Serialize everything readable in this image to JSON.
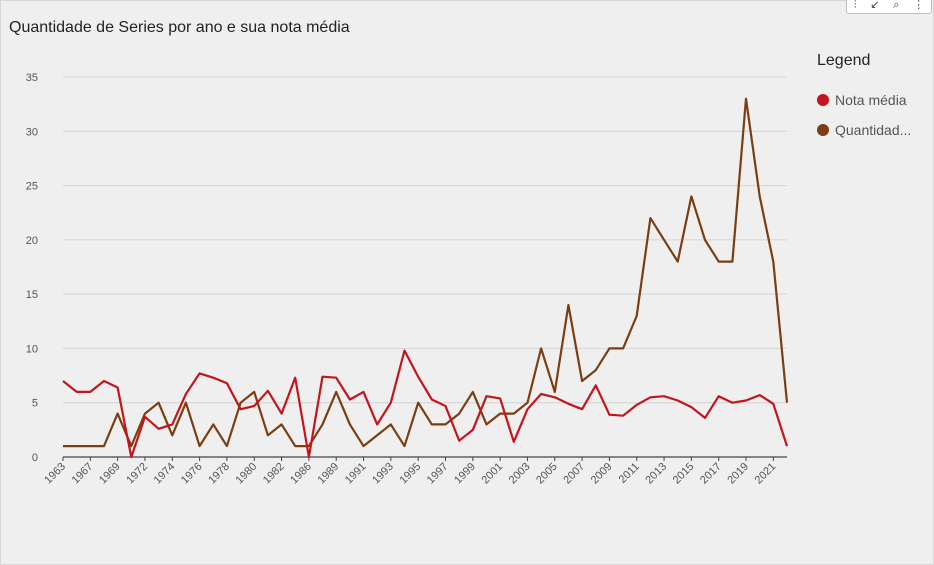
{
  "toolbar": {
    "icons": [
      "filter-icon",
      "collapse-icon",
      "pin-icon",
      "more-options-icon"
    ],
    "glyphs": [
      "⫶",
      "↙",
      "⌕",
      "⋮"
    ]
  },
  "chart_data": {
    "type": "line",
    "title": "Quantidade de Series por ano e sua nota média",
    "legend_title": "Legend",
    "legend_position": "right",
    "grid": true,
    "xlabel": "",
    "ylabel": "",
    "ylim": [
      0,
      35
    ],
    "yticks": [
      "0",
      "5",
      "10",
      "15",
      "20",
      "25",
      "30",
      "35"
    ],
    "x": [
      1963,
      1966,
      1967,
      1968,
      1969,
      1970,
      1972,
      1973,
      1974,
      1975,
      1976,
      1977,
      1978,
      1979,
      1980,
      1981,
      1982,
      1983,
      1986,
      1988,
      1989,
      1990,
      1991,
      1992,
      1993,
      1994,
      1995,
      1996,
      1997,
      1998,
      1999,
      2000,
      2001,
      2002,
      2003,
      2004,
      2005,
      2006,
      2007,
      2008,
      2009,
      2010,
      2011,
      2012,
      2013,
      2014,
      2015,
      2016,
      2017,
      2018,
      2019,
      2020,
      2021,
      2022
    ],
    "xtick_labels": [
      "1963",
      "1967",
      "1969",
      "1972",
      "1974",
      "1976",
      "1978",
      "1980",
      "1982",
      "1986",
      "1989",
      "1991",
      "1993",
      "1995",
      "1997",
      "1999",
      "2001",
      "2003",
      "2005",
      "2007",
      "2009",
      "2011",
      "2013",
      "2015",
      "2017",
      "2019",
      "2021"
    ],
    "xtick_label_indices": [
      0,
      2,
      4,
      6,
      8,
      10,
      12,
      14,
      16,
      18,
      20,
      22,
      24,
      26,
      28,
      30,
      32,
      34,
      36,
      38,
      40,
      42,
      44,
      46,
      48,
      50,
      52
    ],
    "series": [
      {
        "name": "Nota média",
        "color": "#c4151c",
        "values": [
          7,
          6,
          6,
          7,
          6.4,
          0,
          3.7,
          2.6,
          3,
          5.8,
          7.7,
          7.3,
          6.8,
          4.4,
          4.7,
          6.1,
          4,
          7.3,
          0,
          7.4,
          7.3,
          5.3,
          6,
          3,
          5,
          9.8,
          7.4,
          5.3,
          4.7,
          1.5,
          2.5,
          5.6,
          5.4,
          1.4,
          4.4,
          5.8,
          5.5,
          4.9,
          4.4,
          6.6,
          3.9,
          3.8,
          4.8,
          5.5,
          5.6,
          5.2,
          4.6,
          3.6,
          5.6,
          5,
          5.2,
          5.7,
          4.9,
          1
        ]
      },
      {
        "name": "Quantidad...",
        "color": "#7a3e12",
        "values": [
          1,
          1,
          1,
          1,
          4,
          1,
          4,
          5,
          2,
          5,
          1,
          3,
          1,
          5,
          6,
          2,
          3,
          1,
          1,
          3,
          6,
          3,
          1,
          2,
          3,
          1,
          5,
          3,
          3,
          4,
          6,
          3,
          4,
          4,
          5,
          10,
          6,
          14,
          7,
          8,
          10,
          10,
          13,
          22,
          20,
          18,
          24,
          20,
          18,
          18,
          33,
          24,
          18,
          5
        ]
      }
    ]
  }
}
